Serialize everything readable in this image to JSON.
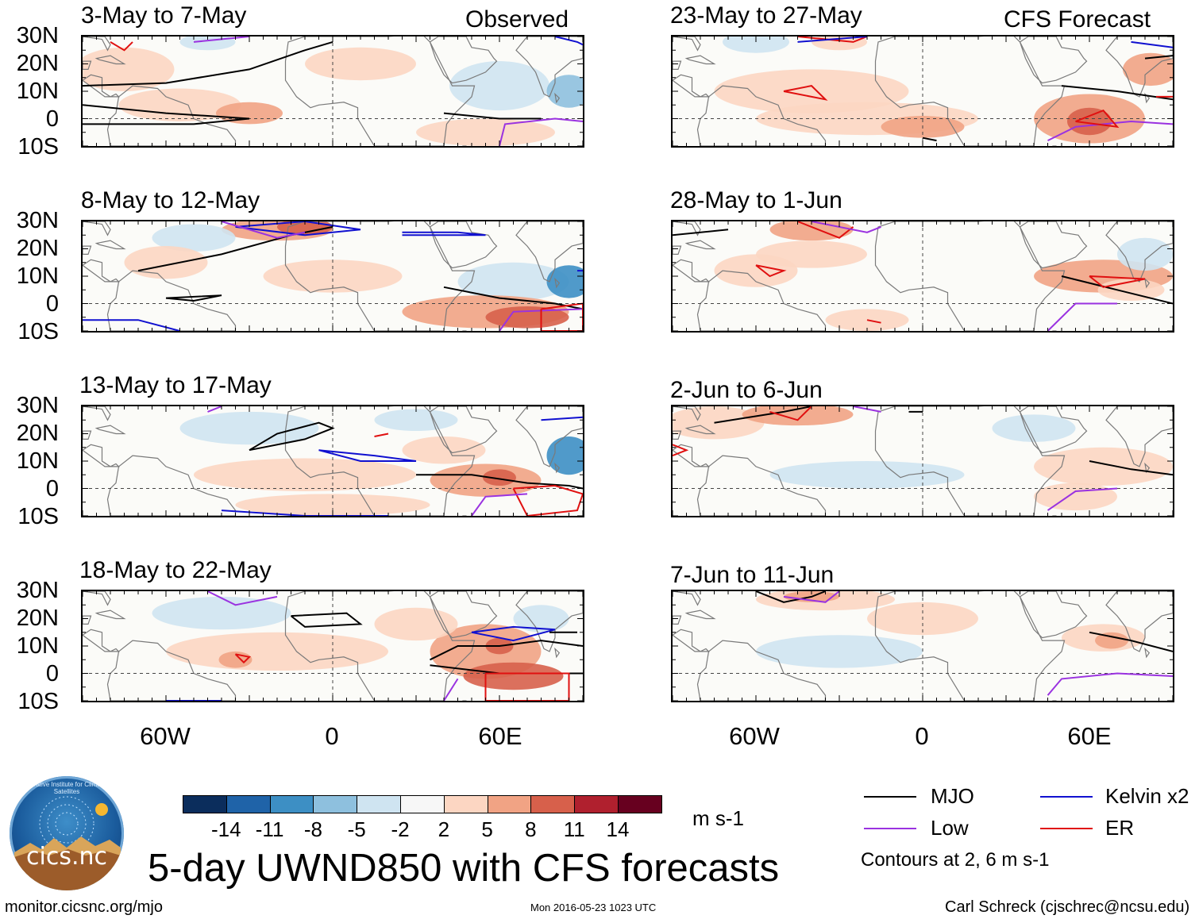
{
  "headers": {
    "left": "Observed",
    "right": "CFS Forecast"
  },
  "panels_left": [
    {
      "title": "3-May to 7-May"
    },
    {
      "title": "8-May to 12-May"
    },
    {
      "title": "13-May to 17-May"
    },
    {
      "title": "18-May to 22-May"
    }
  ],
  "panels_right": [
    {
      "title": "23-May to 27-May"
    },
    {
      "title": "28-May to 1-Jun"
    },
    {
      "title": "2-Jun to 6-Jun"
    },
    {
      "title": "7-Jun to 11-Jun"
    }
  ],
  "lat_labels": [
    "30N",
    "20N",
    "10N",
    "0",
    "10S"
  ],
  "lon_labels": [
    "60W",
    "0",
    "60E"
  ],
  "colorbar": {
    "colors": [
      "#0b2d5c",
      "#1f63a8",
      "#3d8fc4",
      "#8ec0de",
      "#cfe4f1",
      "#f7f7f7",
      "#fcd6c2",
      "#f1a384",
      "#d7604b",
      "#b0202e",
      "#67001f"
    ],
    "labels": [
      "-14",
      "-11",
      "-8",
      "-5",
      "-2",
      "2",
      "5",
      "8",
      "11",
      "14"
    ],
    "units": "m s-1"
  },
  "legend": {
    "items": [
      {
        "label": "MJO",
        "color": "#000000"
      },
      {
        "label": "Kelvin x2",
        "color": "#1010d0"
      },
      {
        "label": "Low",
        "color": "#9a32e0"
      },
      {
        "label": "ER",
        "color": "#e01010"
      }
    ],
    "note": "Contours at 2, 6 m s-1"
  },
  "main_title": "5-day UWND850 with CFS forecasts",
  "footer": {
    "url": "monitor.cicsnc.org/mjo",
    "timestamp": "Mon 2016-05-23 1023 UTC",
    "credit": "Carl Schreck (cjschrec@ncsu.edu)"
  },
  "logo": {
    "text": "cics.nc",
    "ring_text": "Cooperative Institute for Climate and Satellites"
  }
}
